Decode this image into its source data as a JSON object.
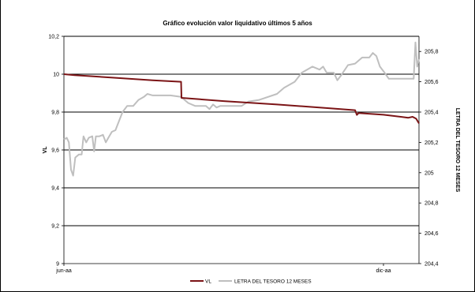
{
  "chart_data": {
    "type": "line",
    "title": "Gráfico evolución valor liquidativo últimos 5 años",
    "ylabel_left": "VL",
    "ylabel_right": "LETRA DEL TESORO 12 MESES",
    "x_tick_labels": [
      "jun-aa",
      "dic-aa"
    ],
    "y_left": {
      "range": [
        9,
        10.2
      ],
      "ticks": [
        9,
        9.2,
        9.4,
        9.6,
        9.8,
        10,
        10.2
      ],
      "tick_labels": [
        "9",
        "9,2",
        "9,4",
        "9,6",
        "9,8",
        "10",
        "10,2"
      ]
    },
    "y_right": {
      "range": [
        204.4,
        205.9
      ],
      "ticks": [
        204.4,
        204.6,
        204.8,
        205,
        205.2,
        205.4,
        205.6,
        205.8
      ],
      "tick_labels": [
        "204,4",
        "204,6",
        "204,8",
        "205",
        "205,2",
        "205,4",
        "205,6",
        "205,8"
      ]
    },
    "grid": true,
    "legend_position": "bottom",
    "series": [
      {
        "name": "VL",
        "axis": "left",
        "color": "#7b1416",
        "points": [
          [
            0,
            10.0
          ],
          [
            0.03,
            9.995
          ],
          [
            0.07,
            9.99
          ],
          [
            0.15,
            9.98
          ],
          [
            0.25,
            9.968
          ],
          [
            0.33,
            9.96
          ],
          [
            0.331,
            9.875
          ],
          [
            0.45,
            9.858
          ],
          [
            0.6,
            9.84
          ],
          [
            0.75,
            9.82
          ],
          [
            0.82,
            9.81
          ],
          [
            0.825,
            9.785
          ],
          [
            0.83,
            9.795
          ],
          [
            0.9,
            9.786
          ],
          [
            0.97,
            9.77
          ],
          [
            0.982,
            9.775
          ],
          [
            0.992,
            9.765
          ],
          [
            1.0,
            9.74
          ]
        ]
      },
      {
        "name": "LETRA DEL TESORO 12 MESES",
        "axis": "right",
        "color": "#bfbfbf",
        "points": [
          [
            0,
            205.22
          ],
          [
            0.008,
            205.23
          ],
          [
            0.014,
            205.2
          ],
          [
            0.02,
            205.02
          ],
          [
            0.026,
            204.98
          ],
          [
            0.032,
            205.1
          ],
          [
            0.042,
            205.12
          ],
          [
            0.05,
            205.12
          ],
          [
            0.055,
            205.24
          ],
          [
            0.063,
            205.2
          ],
          [
            0.07,
            205.23
          ],
          [
            0.08,
            205.24
          ],
          [
            0.085,
            205.14
          ],
          [
            0.09,
            205.24
          ],
          [
            0.1,
            205.24
          ],
          [
            0.11,
            205.25
          ],
          [
            0.118,
            205.2
          ],
          [
            0.125,
            205.23
          ],
          [
            0.135,
            205.27
          ],
          [
            0.145,
            205.28
          ],
          [
            0.155,
            205.34
          ],
          [
            0.165,
            205.4
          ],
          [
            0.178,
            205.44
          ],
          [
            0.195,
            205.44
          ],
          [
            0.21,
            205.48
          ],
          [
            0.225,
            205.5
          ],
          [
            0.235,
            205.52
          ],
          [
            0.25,
            205.51
          ],
          [
            0.3,
            205.51
          ],
          [
            0.33,
            205.5
          ],
          [
            0.35,
            205.46
          ],
          [
            0.37,
            205.44
          ],
          [
            0.4,
            205.44
          ],
          [
            0.41,
            205.42
          ],
          [
            0.42,
            205.45
          ],
          [
            0.43,
            205.43
          ],
          [
            0.44,
            205.44
          ],
          [
            0.5,
            205.44
          ],
          [
            0.52,
            205.47
          ],
          [
            0.55,
            205.48
          ],
          [
            0.6,
            205.52
          ],
          [
            0.62,
            205.56
          ],
          [
            0.65,
            205.6
          ],
          [
            0.67,
            205.66
          ],
          [
            0.7,
            205.7
          ],
          [
            0.72,
            205.68
          ],
          [
            0.73,
            205.7
          ],
          [
            0.74,
            205.66
          ],
          [
            0.76,
            205.66
          ],
          [
            0.77,
            205.61
          ],
          [
            0.78,
            205.64
          ],
          [
            0.8,
            205.71
          ],
          [
            0.82,
            205.72
          ],
          [
            0.84,
            205.76
          ],
          [
            0.86,
            205.76
          ],
          [
            0.87,
            205.79
          ],
          [
            0.88,
            205.77
          ],
          [
            0.89,
            205.7
          ],
          [
            0.9,
            205.67
          ],
          [
            0.915,
            205.62
          ],
          [
            0.93,
            205.62
          ],
          [
            0.97,
            205.62
          ],
          [
            0.985,
            205.62
          ],
          [
            0.99,
            205.86
          ],
          [
            0.995,
            205.7
          ],
          [
            1.0,
            205.75
          ]
        ]
      }
    ]
  }
}
